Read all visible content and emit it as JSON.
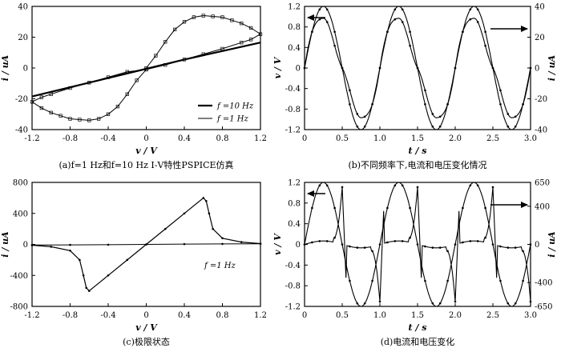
{
  "chart_data": [
    {
      "id": "a",
      "type": "line",
      "caption": "(a)f=1 Hz和f=10 Hz Ⅰ-Ⅴ特性PSPICE仿真",
      "xlabel": "v / V",
      "ylabel": "i / uA",
      "xlim": [
        -1.2,
        1.2
      ],
      "ylim": [
        -40,
        40
      ],
      "xticks": [
        "-1.2",
        "-0.8",
        "-0.4",
        "0",
        "0.4",
        "0.8",
        "1.2"
      ],
      "yticks": [
        "-40",
        "-20",
        "0",
        "20",
        "40"
      ],
      "legend": {
        "position": "bottom-right",
        "entries": [
          "f =10 Hz",
          "f =1 Hz"
        ]
      },
      "series": [
        {
          "name": "f =10 Hz",
          "x": [
            -1.2,
            -0.8,
            -0.4,
            0,
            0.4,
            0.8,
            1.2
          ],
          "y": [
            -18.5,
            -12.5,
            -6.5,
            -0.5,
            5.5,
            11.0,
            16.5
          ]
        },
        {
          "name": "f =1 Hz",
          "x": [
            0,
            0.1,
            0.2,
            0.3,
            0.4,
            0.5,
            0.6,
            0.7,
            0.8,
            0.9,
            1.0,
            1.1,
            1.2,
            1.1,
            1.0,
            0.8,
            0.6,
            0.4,
            0.2,
            0,
            -0.1,
            -0.2,
            -0.3,
            -0.4,
            -0.5,
            -0.6,
            -0.7,
            -0.8,
            -0.9,
            -1.0,
            -1.1,
            -1.2,
            -1.1,
            -1.0,
            -0.8,
            -0.6,
            -0.4,
            -0.2,
            0
          ],
          "y": [
            0,
            8,
            17,
            25,
            30,
            33,
            34,
            33.5,
            33,
            31,
            29,
            26,
            22,
            18.5,
            16.5,
            12.5,
            9,
            5.5,
            2,
            -1,
            -8,
            -17,
            -25,
            -30,
            -33,
            -34,
            -33.5,
            -33,
            -31,
            -29,
            -26,
            -22,
            -19,
            -17,
            -13,
            -9.5,
            -6,
            -2.5,
            -1
          ]
        }
      ]
    },
    {
      "id": "b",
      "type": "line",
      "caption": "(b)不同频率下,电流和电压变化情况",
      "xlabel": "t / s",
      "ylabel": "v / V",
      "ylabel_right": "i / uA",
      "xlim": [
        0,
        3.0
      ],
      "ylim": [
        -1.2,
        1.2
      ],
      "ylim_right": [
        -40,
        40
      ],
      "xticks": [
        "0",
        "0.5",
        "1.0",
        "1.5",
        "2.0",
        "2.5",
        "3.0"
      ],
      "yticks": [
        "-1.2",
        "-0.8",
        "-0.4",
        "0",
        "0.4",
        "0.8",
        "1.2"
      ],
      "yticks_right": [
        "-40",
        "-20",
        "0",
        "20",
        "40"
      ],
      "arrows": [
        "left-axis",
        "right-axis"
      ],
      "series": [
        {
          "axis": "left",
          "curve": "sine",
          "amplitude": 1.2,
          "period": 1.0
        },
        {
          "axis": "right",
          "curve": "pinched",
          "amplitude": 34,
          "period": 1.0
        }
      ]
    },
    {
      "id": "c",
      "type": "line",
      "caption": "(c)极限状态",
      "xlabel": "v / V",
      "ylabel": "i / uA",
      "xlim": [
        -1.2,
        1.2
      ],
      "ylim": [
        -800,
        800
      ],
      "xticks": [
        "-1.2",
        "-0.8",
        "-0.4",
        "0",
        "0.4",
        "0.8",
        "1.2"
      ],
      "yticks": [
        "-800",
        "-400",
        "0",
        "400",
        "800"
      ],
      "annotation": "f =1 Hz",
      "series": [
        {
          "x": [
            -1.2,
            -1.0,
            -0.8,
            -0.7,
            -0.66,
            -0.63,
            -0.6,
            -0.4,
            -0.2,
            0,
            0.2,
            0.4,
            0.6,
            0.63,
            0.66,
            0.7,
            0.8,
            1.0,
            1.2
          ],
          "y": [
            -10,
            -30,
            -80,
            -200,
            -400,
            -560,
            -600,
            -400,
            -200,
            0,
            200,
            400,
            600,
            560,
            400,
            200,
            80,
            30,
            10
          ]
        },
        {
          "x": [
            -1.2,
            -0.8,
            -0.4,
            0,
            0.4,
            0.8,
            1.2
          ],
          "y": [
            -8,
            -6,
            -4,
            0,
            4,
            6,
            8
          ]
        }
      ]
    },
    {
      "id": "d",
      "type": "line",
      "caption": "(d)电流和电压变化",
      "xlabel": "t / s",
      "ylabel": "v / V",
      "ylabel_right": "i / uA",
      "xlim": [
        0,
        3.0
      ],
      "ylim": [
        -1.2,
        1.2
      ],
      "ylim_right": [
        -650,
        650
      ],
      "xticks": [
        "0",
        "0.5",
        "1.0",
        "1.5",
        "2.0",
        "2.5",
        "3.0"
      ],
      "yticks": [
        "-1.2",
        "-0.8",
        "-0.4",
        "0",
        "0.4",
        "0.8",
        "1.2"
      ],
      "yticks_right": [
        "-650",
        "-400",
        "0",
        "400",
        "650"
      ],
      "arrows": [
        "left-axis",
        "right-axis"
      ],
      "series": [
        {
          "axis": "left",
          "curve": "sine",
          "amplitude": 1.2,
          "period": 1.0
        },
        {
          "axis": "right",
          "curve": "spike",
          "amplitude": 600,
          "period": 1.0
        }
      ]
    }
  ]
}
